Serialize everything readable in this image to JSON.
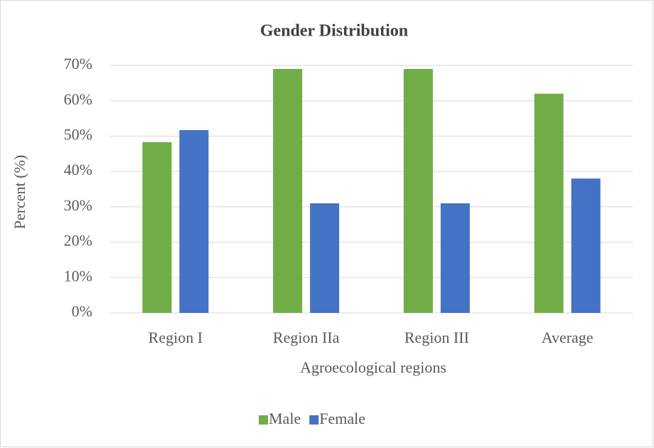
{
  "chart_data": {
    "type": "bar",
    "title": "Gender Distribution",
    "x_label": "Agroecological regions",
    "y_label": "Percent (%)",
    "categories": [
      "Region I",
      "Region IIa",
      "Region III",
      "Average"
    ],
    "series": [
      {
        "name": "Male",
        "color": "#70ad47",
        "values": [
          48.3,
          69,
          69,
          62
        ]
      },
      {
        "name": "Female",
        "color": "#4472c4",
        "values": [
          51.7,
          31,
          31,
          38
        ]
      }
    ],
    "ylim": [
      0,
      70
    ],
    "yticks": [
      {
        "value": 0,
        "label": "0%"
      },
      {
        "value": 10,
        "label": "10%"
      },
      {
        "value": 20,
        "label": "20%"
      },
      {
        "value": 30,
        "label": "30%"
      },
      {
        "value": 40,
        "label": "40%"
      },
      {
        "value": 50,
        "label": "50%"
      },
      {
        "value": 60,
        "label": "60%"
      },
      {
        "value": 70,
        "label": "70%"
      }
    ],
    "grid": true,
    "legend": "bottom"
  }
}
